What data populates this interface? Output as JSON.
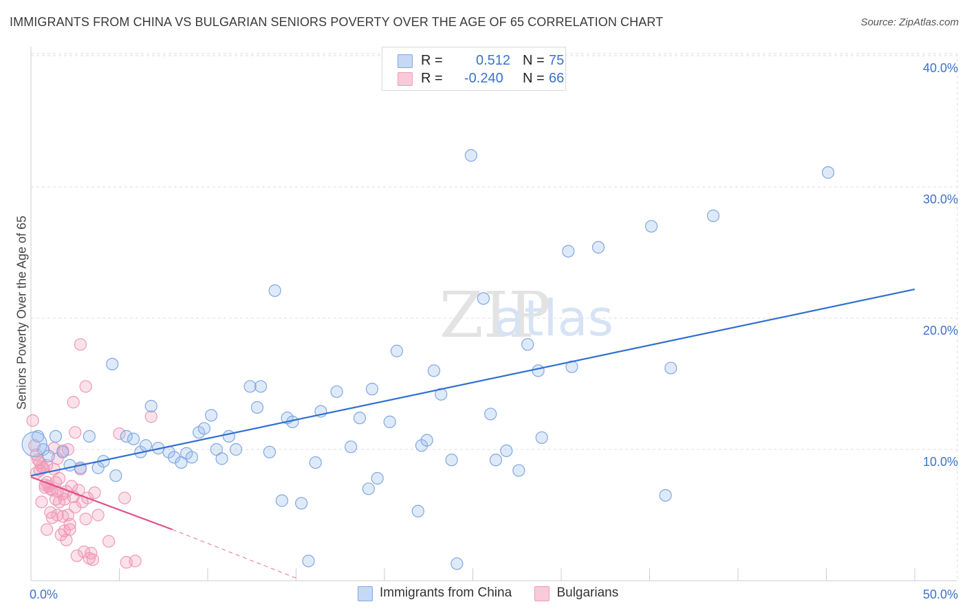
{
  "title": "IMMIGRANTS FROM CHINA VS BULGARIAN SENIORS POVERTY OVER THE AGE OF 65 CORRELATION CHART",
  "source": "Source: ZipAtlas.com",
  "watermark": {
    "zip": "ZIP",
    "atlas": "atlas"
  },
  "legend": {
    "rows": [
      {
        "r_label": "R =",
        "r_value": "0.512",
        "n_label": "N =",
        "n_value": "75"
      },
      {
        "r_label": "R =",
        "r_value": "-0.240",
        "n_label": "N =",
        "n_value": "66"
      }
    ]
  },
  "chart_data": {
    "type": "scatter",
    "title": "IMMIGRANTS FROM CHINA VS BULGARIAN SENIORS POVERTY OVER THE AGE OF 65 CORRELATION CHART",
    "xlabel": "",
    "ylabel": "Seniors Poverty Over the Age of 65",
    "xlim": [
      0,
      50
    ],
    "ylim": [
      0,
      42
    ],
    "x_tick_labels": [
      "0.0%",
      "50.0%"
    ],
    "y_ticks": [
      10,
      20,
      30,
      40
    ],
    "y_tick_labels": [
      "10.0%",
      "20.0%",
      "30.0%",
      "40.0%"
    ],
    "grid": true,
    "legend_position": "top-center",
    "series": [
      {
        "name": "Immigrants from China",
        "color": "#6f9fe0",
        "line_color": "#2e6fd0",
        "trend": {
          "x": [
            0,
            50
          ],
          "y": [
            8.0,
            22.2
          ]
        },
        "points": [
          [
            0.4,
            11.0
          ],
          [
            0.7,
            10.0
          ],
          [
            1.0,
            9.5
          ],
          [
            1.4,
            11.0
          ],
          [
            1.8,
            9.8
          ],
          [
            2.2,
            8.8
          ],
          [
            2.8,
            8.6
          ],
          [
            3.3,
            11.0
          ],
          [
            3.8,
            8.6
          ],
          [
            4.1,
            9.1
          ],
          [
            4.8,
            8.0
          ],
          [
            4.6,
            16.5
          ],
          [
            5.4,
            11.0
          ],
          [
            5.8,
            10.8
          ],
          [
            6.2,
            9.8
          ],
          [
            6.5,
            10.3
          ],
          [
            6.8,
            13.3
          ],
          [
            7.2,
            10.1
          ],
          [
            7.8,
            9.8
          ],
          [
            8.1,
            9.4
          ],
          [
            8.5,
            9.0
          ],
          [
            8.8,
            9.7
          ],
          [
            9.1,
            9.4
          ],
          [
            9.5,
            11.3
          ],
          [
            9.8,
            11.6
          ],
          [
            10.2,
            12.6
          ],
          [
            10.5,
            10.0
          ],
          [
            10.8,
            9.3
          ],
          [
            11.2,
            11.0
          ],
          [
            11.6,
            10.0
          ],
          [
            12.4,
            14.8
          ],
          [
            12.8,
            13.2
          ],
          [
            13.0,
            14.8
          ],
          [
            13.5,
            9.8
          ],
          [
            13.8,
            22.1
          ],
          [
            14.2,
            6.1
          ],
          [
            14.5,
            12.4
          ],
          [
            14.8,
            12.1
          ],
          [
            15.3,
            5.9
          ],
          [
            15.7,
            1.5
          ],
          [
            16.1,
            9.0
          ],
          [
            16.4,
            12.9
          ],
          [
            17.3,
            14.4
          ],
          [
            18.1,
            10.2
          ],
          [
            18.6,
            12.4
          ],
          [
            19.1,
            7.0
          ],
          [
            19.3,
            14.6
          ],
          [
            19.6,
            7.8
          ],
          [
            20.3,
            12.1
          ],
          [
            20.7,
            17.5
          ],
          [
            21.9,
            5.3
          ],
          [
            22.1,
            10.3
          ],
          [
            22.4,
            10.7
          ],
          [
            22.8,
            16.0
          ],
          [
            23.2,
            14.2
          ],
          [
            23.8,
            9.2
          ],
          [
            24.1,
            1.3
          ],
          [
            24.9,
            32.4
          ],
          [
            25.6,
            21.5
          ],
          [
            26.0,
            12.7
          ],
          [
            26.3,
            9.2
          ],
          [
            26.9,
            9.9
          ],
          [
            27.6,
            8.4
          ],
          [
            28.1,
            18.0
          ],
          [
            28.7,
            16.0
          ],
          [
            28.9,
            10.9
          ],
          [
            30.4,
            25.1
          ],
          [
            30.6,
            16.3
          ],
          [
            32.1,
            25.4
          ],
          [
            35.1,
            27.0
          ],
          [
            35.9,
            6.5
          ],
          [
            36.2,
            16.2
          ],
          [
            38.6,
            27.8
          ],
          [
            45.1,
            31.1
          ],
          [
            0.2,
            10.4
          ]
        ]
      },
      {
        "name": "Bulgarians",
        "color": "#f08aaa",
        "line_color": "#e0508a",
        "trend": {
          "x": [
            0,
            8
          ],
          "y": [
            7.9,
            3.9
          ]
        },
        "trend_dashed": {
          "x": [
            8,
            15
          ],
          "y": [
            3.9,
            0.2
          ]
        },
        "points": [
          [
            0.1,
            12.2
          ],
          [
            0.2,
            10.3
          ],
          [
            0.3,
            9.6
          ],
          [
            0.3,
            8.2
          ],
          [
            0.4,
            9.2
          ],
          [
            0.5,
            9.0
          ],
          [
            0.5,
            8.4
          ],
          [
            0.6,
            8.7
          ],
          [
            0.7,
            8.6
          ],
          [
            0.8,
            7.3
          ],
          [
            0.8,
            7.1
          ],
          [
            0.9,
            8.8
          ],
          [
            0.9,
            7.5
          ],
          [
            1.0,
            7.2
          ],
          [
            1.1,
            7.0
          ],
          [
            1.1,
            5.2
          ],
          [
            1.2,
            6.9
          ],
          [
            1.2,
            4.8
          ],
          [
            1.3,
            8.5
          ],
          [
            1.4,
            7.5
          ],
          [
            1.4,
            6.2
          ],
          [
            1.5,
            6.8
          ],
          [
            1.5,
            5.0
          ],
          [
            1.6,
            7.8
          ],
          [
            1.6,
            6.0
          ],
          [
            1.7,
            3.5
          ],
          [
            1.8,
            6.6
          ],
          [
            1.8,
            4.9
          ],
          [
            1.8,
            9.9
          ],
          [
            1.9,
            3.8
          ],
          [
            1.9,
            6.2
          ],
          [
            2.0,
            6.8
          ],
          [
            2.0,
            3.1
          ],
          [
            2.1,
            10.0
          ],
          [
            2.1,
            5.0
          ],
          [
            2.2,
            4.3
          ],
          [
            2.2,
            3.9
          ],
          [
            2.3,
            7.2
          ],
          [
            2.4,
            6.4
          ],
          [
            2.4,
            13.6
          ],
          [
            2.5,
            5.6
          ],
          [
            2.5,
            11.3
          ],
          [
            2.6,
            1.9
          ],
          [
            2.8,
            8.5
          ],
          [
            2.8,
            18.0
          ],
          [
            2.9,
            6.0
          ],
          [
            3.0,
            2.2
          ],
          [
            3.1,
            14.8
          ],
          [
            3.1,
            4.7
          ],
          [
            3.2,
            6.3
          ],
          [
            3.3,
            1.7
          ],
          [
            3.4,
            2.1
          ],
          [
            3.5,
            1.6
          ],
          [
            3.8,
            5.0
          ],
          [
            4.4,
            3.0
          ],
          [
            5.0,
            11.2
          ],
          [
            5.3,
            6.3
          ],
          [
            5.4,
            1.4
          ],
          [
            5.9,
            1.5
          ],
          [
            6.8,
            12.5
          ],
          [
            1.5,
            9.3
          ],
          [
            0.6,
            6.0
          ],
          [
            2.7,
            6.9
          ],
          [
            0.9,
            3.9
          ],
          [
            1.3,
            10.1
          ],
          [
            3.6,
            6.7
          ]
        ]
      }
    ]
  }
}
